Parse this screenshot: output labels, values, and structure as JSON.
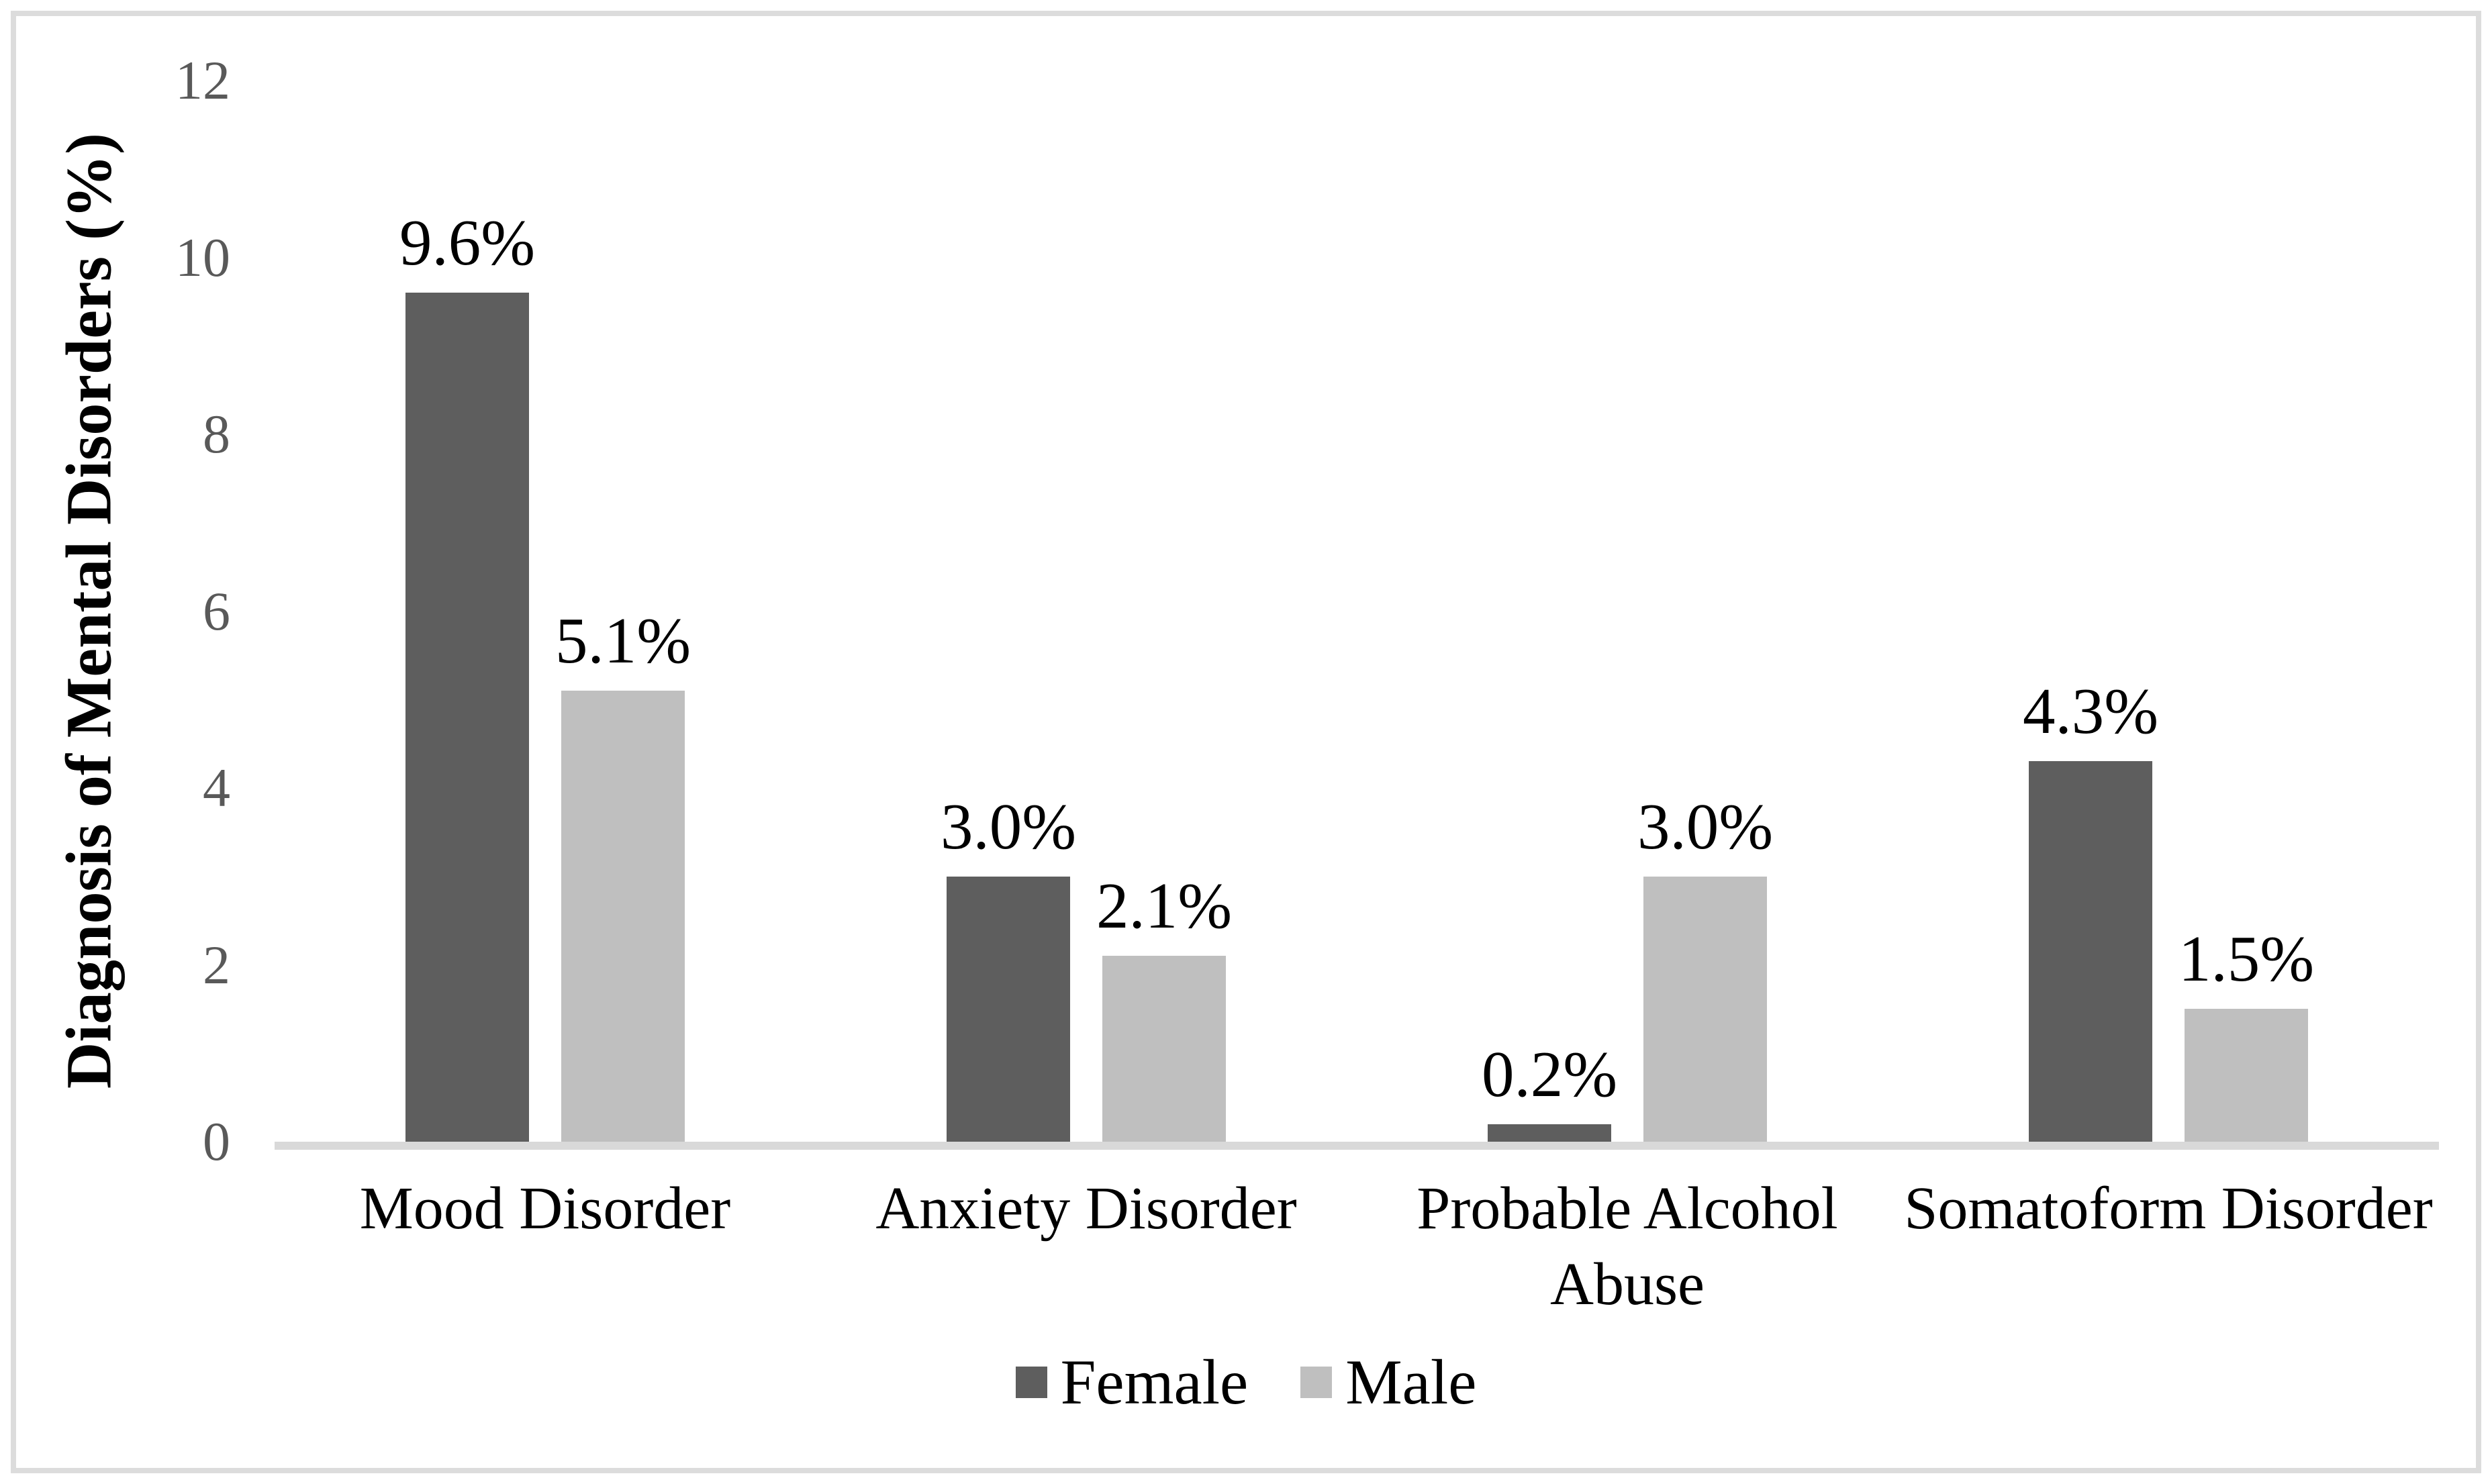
{
  "figure": {
    "background": "#ffffff",
    "frame_border_color": "#dcdcdc"
  },
  "chart_data": {
    "type": "bar",
    "title": "",
    "xlabel": "",
    "ylabel": "Diagnosis of Mental Disorders (%)",
    "ylim": [
      0,
      12
    ],
    "yticks": [
      0,
      2,
      4,
      6,
      8,
      10,
      12
    ],
    "grid": false,
    "legend_position": "bottom",
    "axis_line_color": "#d9d9d9",
    "tick_label_color": "#595959",
    "categories": [
      "Mood Disorder",
      "Anxiety Disorder",
      "Probable Alcohol Abuse",
      "Somatoform Disorder"
    ],
    "series": [
      {
        "name": "Female",
        "color": "#5e5e5e",
        "values": [
          9.6,
          3.0,
          0.2,
          4.3
        ],
        "labels": [
          "9.6%",
          "3.0%",
          "0.2%",
          "4.3%"
        ]
      },
      {
        "name": "Male",
        "color": "#bfbfbf",
        "values": [
          5.1,
          2.1,
          3.0,
          1.5
        ],
        "labels": [
          "5.1%",
          "2.1%",
          "3.0%",
          "1.5%"
        ]
      }
    ]
  }
}
